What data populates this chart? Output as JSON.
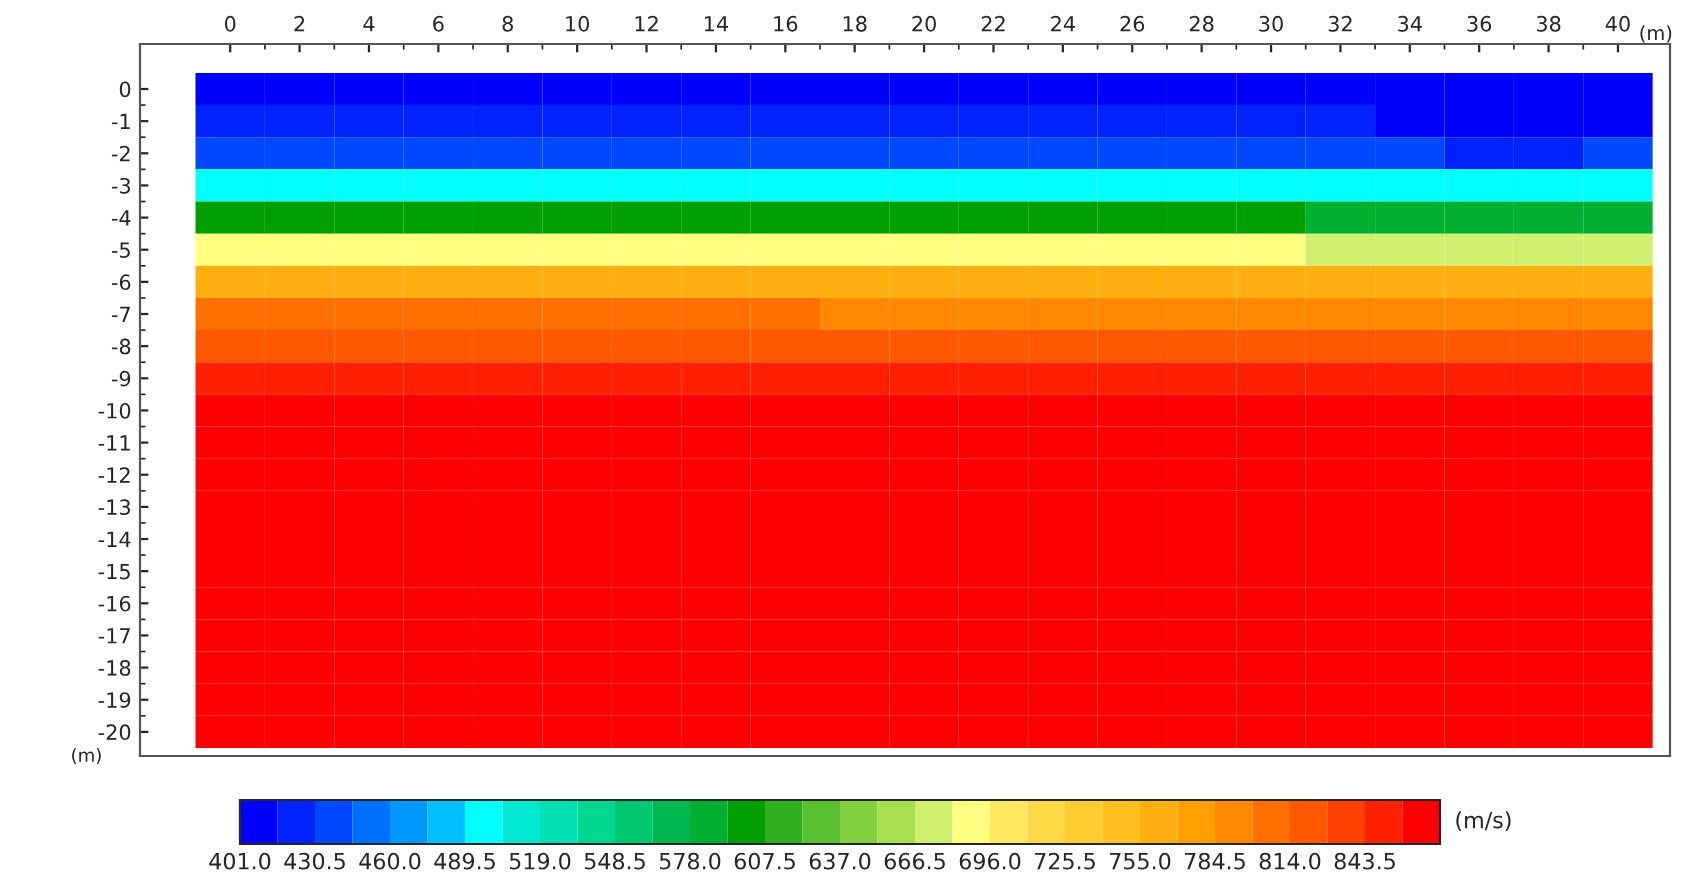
{
  "chart_data": {
    "type": "heatmap",
    "xlabel": "(m)",
    "ylabel": "(m)",
    "clabel": "(m/s)",
    "categories": [
      "0",
      "2",
      "4",
      "6",
      "8",
      "10",
      "12",
      "14",
      "16",
      "18",
      "20",
      "22",
      "24",
      "26",
      "28",
      "30",
      "32",
      "34",
      "36",
      "38",
      "40"
    ],
    "y_categories": [
      "0",
      "-1",
      "-2",
      "-3",
      "-4",
      "-5",
      "-6",
      "-7",
      "-8",
      "-9",
      "-10",
      "-11",
      "-12",
      "-13",
      "-14",
      "-15",
      "-16",
      "-17",
      "-18",
      "-19",
      "-20"
    ],
    "cells": [
      [
        405,
        405,
        405,
        405,
        405,
        405,
        405,
        405,
        405,
        405,
        405,
        405,
        405,
        405,
        405,
        405,
        405,
        405,
        405,
        405,
        405
      ],
      [
        425,
        425,
        425,
        425,
        425,
        425,
        425,
        425,
        428,
        428,
        428,
        428,
        428,
        425,
        425,
        425,
        420,
        415,
        412,
        412,
        415
      ],
      [
        442,
        442,
        442,
        442,
        442,
        442,
        442,
        442,
        442,
        442,
        442,
        442,
        442,
        442,
        442,
        442,
        438,
        432,
        428,
        428,
        432
      ],
      [
        497,
        497,
        497,
        497,
        497,
        497,
        497,
        497,
        497,
        497,
        497,
        497,
        497,
        497,
        497,
        497,
        490,
        490,
        490,
        490,
        490
      ],
      [
        600,
        600,
        600,
        600,
        600,
        600,
        600,
        600,
        600,
        600,
        600,
        600,
        600,
        600,
        600,
        600,
        590,
        590,
        590,
        590,
        590
      ],
      [
        690,
        690,
        690,
        690,
        690,
        690,
        690,
        690,
        690,
        690,
        690,
        690,
        690,
        690,
        690,
        690,
        680,
        680,
        680,
        680,
        680
      ],
      [
        765,
        765,
        765,
        765,
        765,
        765,
        765,
        765,
        765,
        755,
        755,
        755,
        755,
        755,
        755,
        755,
        755,
        755,
        755,
        755,
        755
      ],
      [
        805,
        805,
        805,
        805,
        805,
        805,
        805,
        805,
        805,
        790,
        790,
        790,
        790,
        790,
        790,
        790,
        790,
        790,
        790,
        790,
        790
      ],
      [
        825,
        825,
        825,
        825,
        825,
        825,
        825,
        825,
        825,
        825,
        825,
        825,
        825,
        825,
        825,
        825,
        825,
        825,
        825,
        825,
        825
      ],
      [
        848,
        848,
        848,
        848,
        848,
        848,
        848,
        848,
        848,
        848,
        848,
        848,
        848,
        848,
        848,
        848,
        848,
        848,
        848,
        848,
        848
      ],
      [
        868,
        868,
        868,
        868,
        868,
        868,
        868,
        868,
        868,
        868,
        868,
        868,
        868,
        868,
        868,
        868,
        868,
        868,
        868,
        868,
        868
      ],
      [
        868,
        868,
        868,
        868,
        868,
        868,
        868,
        868,
        868,
        868,
        868,
        868,
        868,
        868,
        868,
        868,
        868,
        868,
        868,
        868,
        868
      ],
      [
        868,
        868,
        868,
        868,
        868,
        868,
        868,
        868,
        868,
        868,
        868,
        868,
        868,
        868,
        868,
        868,
        868,
        868,
        868,
        868,
        868
      ],
      [
        868,
        868,
        868,
        868,
        868,
        868,
        868,
        868,
        868,
        868,
        868,
        868,
        868,
        868,
        868,
        868,
        868,
        868,
        868,
        868,
        868
      ],
      [
        868,
        868,
        868,
        868,
        868,
        868,
        868,
        868,
        868,
        868,
        868,
        868,
        868,
        868,
        868,
        868,
        868,
        868,
        868,
        868,
        868
      ],
      [
        868,
        868,
        868,
        868,
        868,
        868,
        868,
        868,
        868,
        868,
        868,
        868,
        868,
        868,
        868,
        868,
        868,
        868,
        868,
        868,
        868
      ],
      [
        868,
        868,
        868,
        868,
        868,
        868,
        868,
        868,
        868,
        868,
        868,
        868,
        868,
        868,
        868,
        868,
        868,
        868,
        868,
        868,
        868
      ],
      [
        868,
        868,
        868,
        868,
        868,
        868,
        868,
        868,
        868,
        868,
        868,
        868,
        868,
        868,
        868,
        868,
        868,
        868,
        868,
        868,
        868
      ],
      [
        868,
        868,
        868,
        868,
        868,
        868,
        868,
        868,
        868,
        868,
        868,
        868,
        868,
        868,
        868,
        868,
        868,
        868,
        868,
        868,
        868
      ],
      [
        868,
        868,
        868,
        868,
        868,
        868,
        868,
        868,
        868,
        868,
        868,
        868,
        868,
        868,
        868,
        868,
        868,
        868,
        868,
        868,
        868
      ],
      [
        868,
        868,
        868,
        868,
        868,
        868,
        868,
        868,
        868,
        868,
        868,
        868,
        868,
        868,
        868,
        868,
        868,
        868,
        868,
        868,
        868
      ]
    ],
    "colors": [
      "#0000ff",
      "#0022ff",
      "#0048ff",
      "#0070ff",
      "#0098ff",
      "#00c0ff",
      "#00ffff",
      "#00e8d0",
      "#00e0b0",
      "#00d890",
      "#00c870",
      "#00b850",
      "#00b030",
      "#00a000",
      "#30b020",
      "#58c030",
      "#80d040",
      "#a8e050",
      "#d0f070",
      "#ffff80",
      "#ffe860",
      "#ffd848",
      "#ffcc30",
      "#ffc020",
      "#ffb010",
      "#ffa000",
      "#ff8800",
      "#ff7000",
      "#ff5800",
      "#ff4000",
      "#ff2000",
      "#ff0000"
    ],
    "clim": [
      401,
      873
    ],
    "cticks": [
      {
        "value": 401,
        "label": "401.0"
      },
      {
        "value": 430.5,
        "label": "430.5"
      },
      {
        "value": 460,
        "label": "460.0"
      },
      {
        "value": 489.5,
        "label": "489.5"
      },
      {
        "value": 519,
        "label": "519.0"
      },
      {
        "value": 548.5,
        "label": "548.5"
      },
      {
        "value": 578,
        "label": "578.0"
      },
      {
        "value": 607.5,
        "label": "607.5"
      },
      {
        "value": 637,
        "label": "637.0"
      },
      {
        "value": 666.5,
        "label": "666.5"
      },
      {
        "value": 696,
        "label": "696.0"
      },
      {
        "value": 725.5,
        "label": "725.5"
      },
      {
        "value": 755,
        "label": "755.0"
      },
      {
        "value": 784.5,
        "label": "784.5"
      },
      {
        "value": 814,
        "label": "814.0"
      },
      {
        "value": 843.5,
        "label": "843.5"
      }
    ]
  }
}
